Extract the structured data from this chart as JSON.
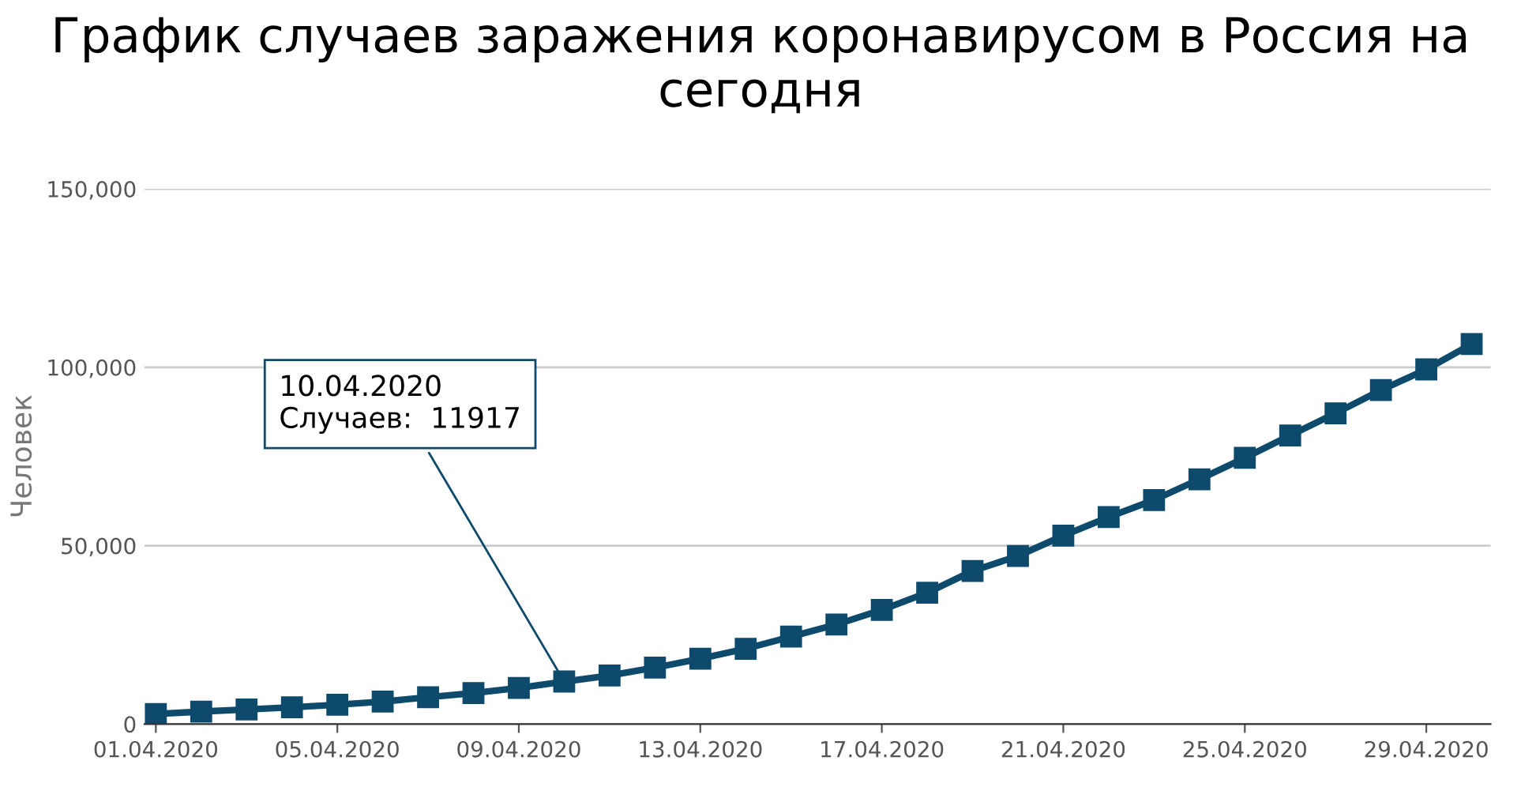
{
  "chart_data": {
    "type": "line",
    "title": "График случаев заражения коронавирусом в Россия на сегодня",
    "ylabel": "Человек",
    "x": [
      "2020-04-01",
      "2020-04-02",
      "2020-04-03",
      "2020-04-04",
      "2020-04-05",
      "2020-04-06",
      "2020-04-07",
      "2020-04-08",
      "2020-04-09",
      "2020-04-10",
      "2020-04-11",
      "2020-04-12",
      "2020-04-13",
      "2020-04-14",
      "2020-04-15",
      "2020-04-16",
      "2020-04-17",
      "2020-04-18",
      "2020-04-19",
      "2020-04-20",
      "2020-04-21",
      "2020-04-22",
      "2020-04-23",
      "2020-04-24",
      "2020-04-25",
      "2020-04-26",
      "2020-04-27",
      "2020-04-28",
      "2020-04-29",
      "2020-04-30"
    ],
    "series": [
      {
        "color": "#0d4a6b",
        "values": [
          2800,
          3500,
          4100,
          4700,
          5400,
          6300,
          7500,
          8700,
          10100,
          11917,
          13600,
          15800,
          18300,
          21100,
          24500,
          27900,
          32000,
          36800,
          42900,
          47100,
          52800,
          58000,
          62800,
          68600,
          74600,
          80900,
          87100,
          93600,
          99400,
          106500
        ]
      }
    ],
    "xlim": [
      "2020-03-31T18:00",
      "2020-04-30T10:00"
    ],
    "xticks": [
      {
        "value": "2020-04-01",
        "label": "01.04.2020"
      },
      {
        "value": "2020-04-05",
        "label": "05.04.2020"
      },
      {
        "value": "2020-04-09",
        "label": "09.04.2020"
      },
      {
        "value": "2020-04-13",
        "label": "13.04.2020"
      },
      {
        "value": "2020-04-17",
        "label": "17.04.2020"
      },
      {
        "value": "2020-04-21",
        "label": "21.04.2020"
      },
      {
        "value": "2020-04-25",
        "label": "25.04.2020"
      },
      {
        "value": "2020-04-29",
        "label": "29.04.2020"
      }
    ],
    "ylim": [
      0,
      150000
    ],
    "yticks": [
      {
        "value": 0,
        "label": "0"
      },
      {
        "value": 50000,
        "label": "50,000"
      },
      {
        "value": 100000,
        "label": "100,000"
      },
      {
        "value": 150000,
        "label": "150,000"
      }
    ],
    "grid": "y",
    "marker": "square",
    "line_style": "solid",
    "legend": false,
    "annotations": [
      {
        "text": "10.04.2020\nСлучаев:  11917",
        "x": "2020-04-10",
        "y": 11917
      }
    ]
  }
}
